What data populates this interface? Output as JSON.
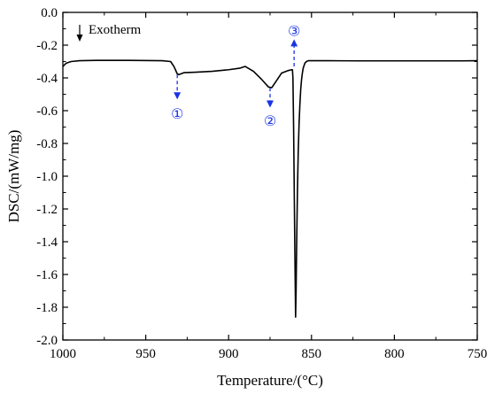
{
  "chart_data": {
    "type": "line",
    "xlabel": "Temperature/(°C)",
    "ylabel": "DSC/(mW/mg)",
    "xlim": [
      1000,
      750
    ],
    "ylim": [
      -2.0,
      0.0
    ],
    "xticks": [
      1000,
      950,
      900,
      850,
      800,
      750
    ],
    "yticks": [
      0.0,
      -0.2,
      -0.4,
      -0.6,
      -0.8,
      -1.0,
      -1.2,
      -1.4,
      -1.6,
      -1.8,
      -2.0
    ],
    "x": [
      1000,
      998,
      995,
      990,
      980,
      960,
      940,
      935,
      933,
      931,
      930,
      927,
      920,
      910,
      900,
      893,
      890,
      885,
      880,
      876,
      874,
      872,
      868,
      864,
      862,
      861.5,
      861.2,
      860.8,
      860.4,
      860.0,
      859.6,
      859.3,
      859.0,
      858.5,
      858.0,
      857.5,
      857.0,
      856.5,
      856.0,
      855.5,
      855.0,
      854.0,
      853.0,
      852.0,
      850.0,
      840.0,
      820.0,
      800.0,
      780.0,
      760.0,
      750.0
    ],
    "y": [
      -0.33,
      -0.31,
      -0.3,
      -0.295,
      -0.293,
      -0.293,
      -0.295,
      -0.3,
      -0.33,
      -0.375,
      -0.38,
      -0.368,
      -0.365,
      -0.36,
      -0.35,
      -0.34,
      -0.33,
      -0.36,
      -0.41,
      -0.455,
      -0.46,
      -0.43,
      -0.37,
      -0.355,
      -0.35,
      -0.35,
      -0.4,
      -0.7,
      -1.1,
      -1.5,
      -1.86,
      -1.7,
      -1.45,
      -1.1,
      -0.85,
      -0.68,
      -0.56,
      -0.47,
      -0.41,
      -0.37,
      -0.34,
      -0.31,
      -0.3,
      -0.295,
      -0.295,
      -0.295,
      -0.296,
      -0.296,
      -0.296,
      -0.296,
      -0.295
    ],
    "annotations": {
      "exotherm_label": "Exotherm",
      "markers": [
        {
          "label": "①",
          "x": 931,
          "y_start": -0.38,
          "y_end": -0.52,
          "direction": "down",
          "label_y": -0.615
        },
        {
          "label": "②",
          "x": 875,
          "y_start": -0.46,
          "y_end": -0.57,
          "direction": "down",
          "label_y": -0.66
        },
        {
          "label": "③",
          "x": 860.5,
          "y_start": -0.33,
          "y_end": -0.175,
          "direction": "up",
          "label_y": -0.11
        }
      ]
    },
    "colors": {
      "line": "#000000",
      "annotation": "#1a33e6"
    }
  }
}
